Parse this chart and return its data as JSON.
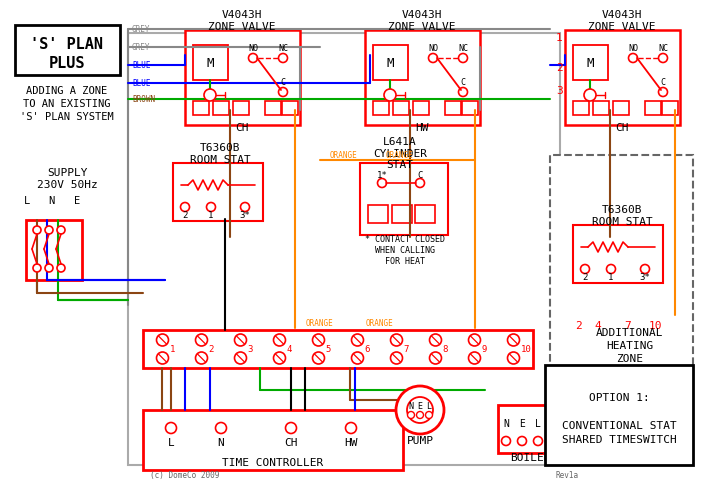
{
  "bg_color": "#ffffff",
  "wire_colors": {
    "grey": "#888888",
    "blue": "#0000ff",
    "green": "#00aa00",
    "orange": "#ff8800",
    "brown": "#8B4513",
    "black": "#000000",
    "red": "#ff0000",
    "white": "#ffffff"
  },
  "zone_valve_labels": [
    "V4043H\nZONE VALVE",
    "V4043H\nZONE VALVE",
    "V4043H\nZONE VALVE"
  ],
  "ch_hw_labels": [
    "CH",
    "HW",
    "CH"
  ],
  "stat_labels_1": "T6360B\nROOM STAT",
  "stat_labels_2": "L641A\nCYLINDER\nSTAT",
  "stat_labels_3": "T6360B\nROOM STAT",
  "tc_terminals": [
    "L",
    "N",
    "CH",
    "HW"
  ],
  "option_text": "OPTION 1:\n\nCONVENTIONAL STAT\nSHARED TIMESWITCH",
  "add_heat_text": "ADDITIONAL\nHEATING\nZONE",
  "pump_label": "PUMP",
  "boiler_label": "BOILER",
  "tc_label": "TIME CONTROLLER",
  "contact_note": "* CONTACT CLOSED\nWHEN CALLING\nFOR HEAT",
  "copyright": "(c) DomeCo 2009",
  "rev": "Rev1a"
}
